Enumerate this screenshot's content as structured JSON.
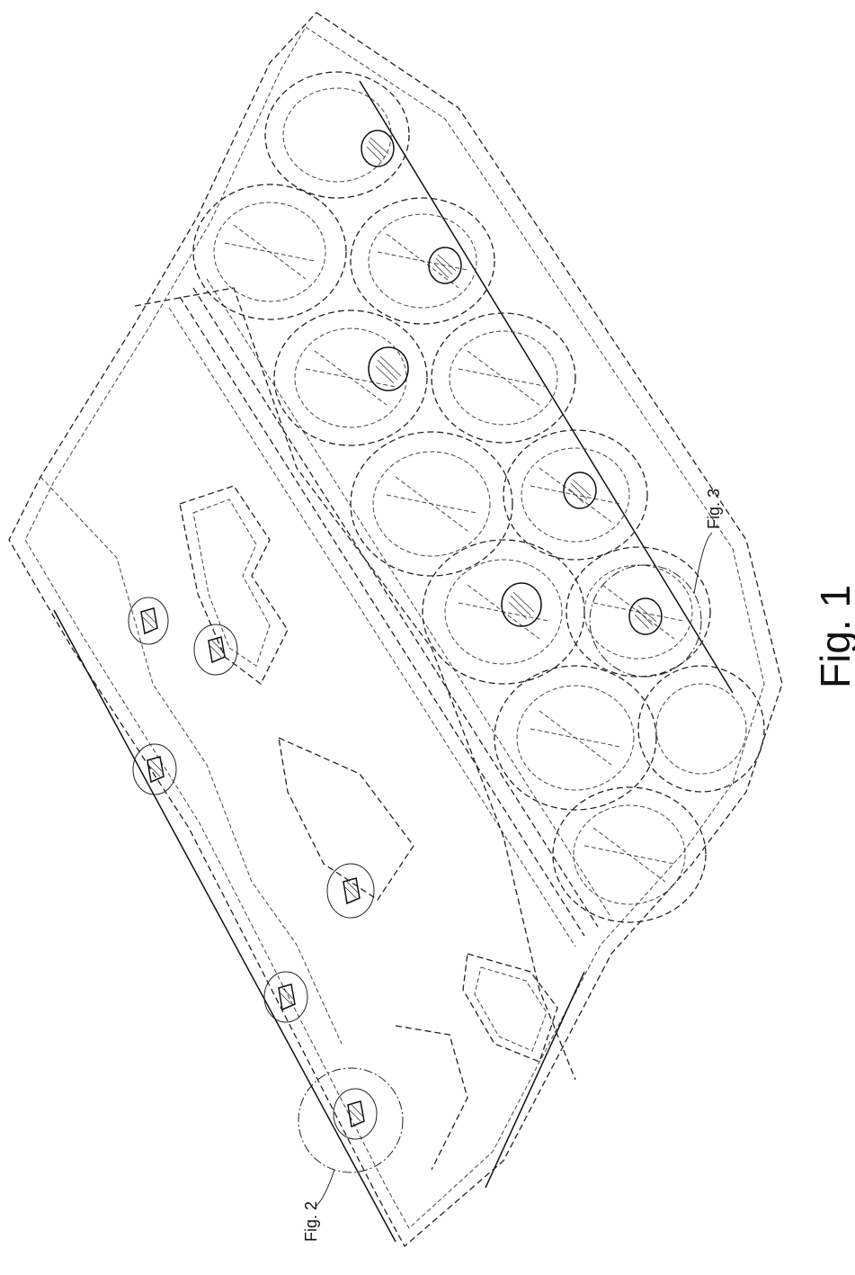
{
  "figure": {
    "title": "Fig. 1",
    "callouts": [
      {
        "id": "fig2",
        "label": "Fig. 2"
      },
      {
        "id": "fig3",
        "label": "Fig. 3"
      }
    ]
  }
}
